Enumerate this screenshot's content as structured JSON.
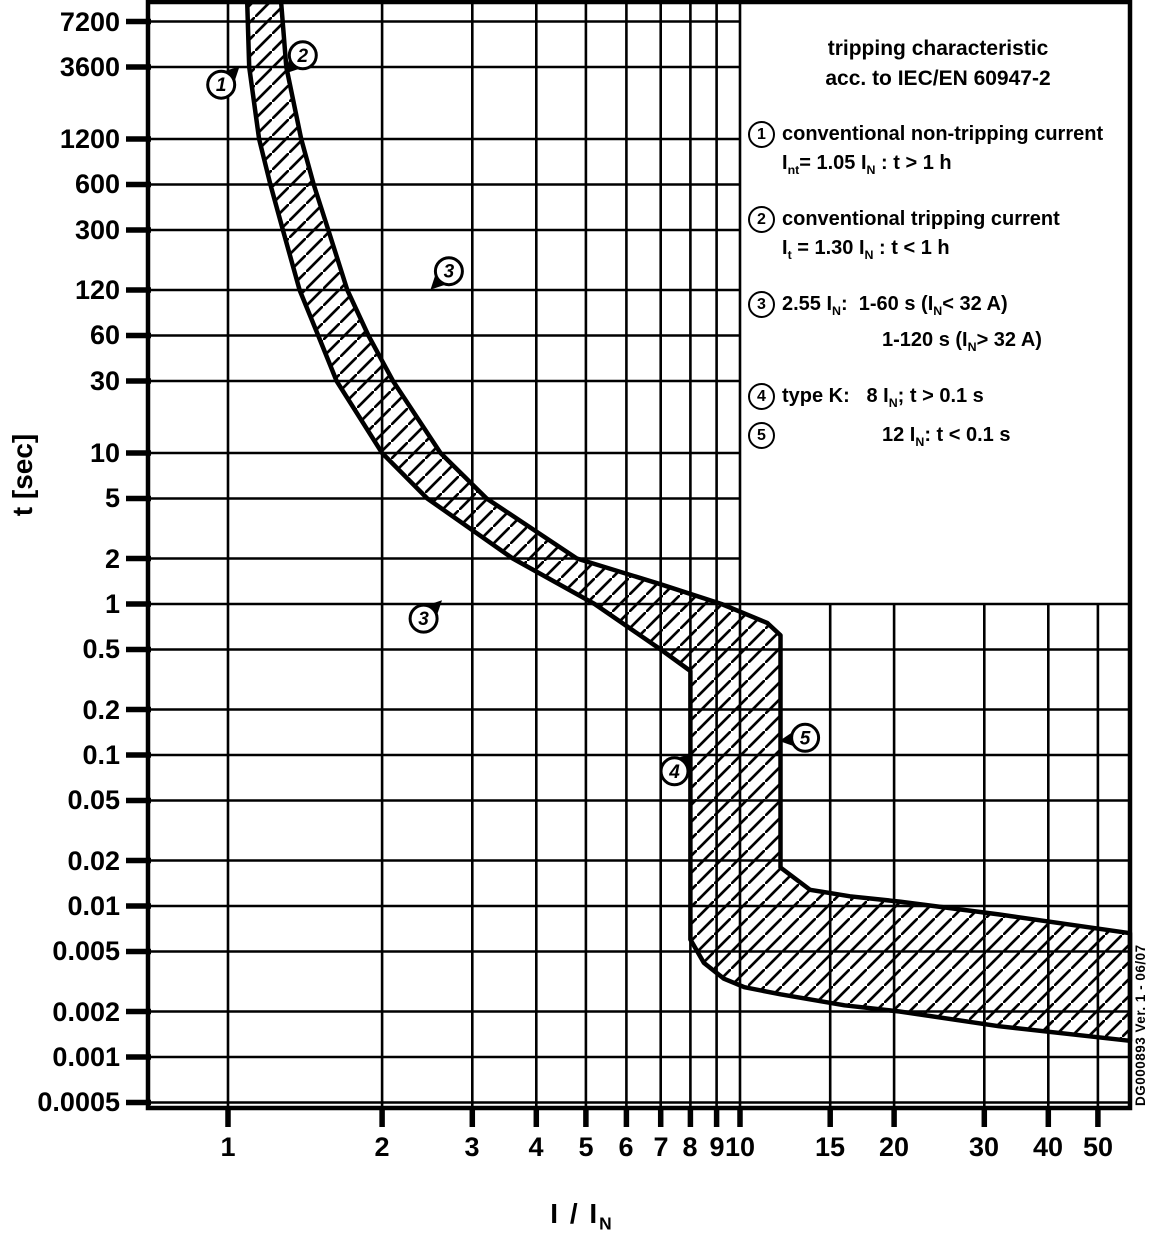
{
  "chart_data": {
    "type": "area",
    "title": "tripping characteristic acc. to IEC/EN 60947-2",
    "xlabel": "I / I~N~",
    "ylabel": "t [sec]",
    "x_scale": "log",
    "y_scale": "log",
    "grid": true,
    "xlim": [
      0.7,
      57.8
    ],
    "ylim": [
      0.00046,
      9700
    ],
    "x_ticks": [
      1,
      2,
      3,
      4,
      5,
      6,
      7,
      8,
      9,
      10,
      15,
      20,
      30,
      40,
      50
    ],
    "x_tick_labels": [
      "1",
      "2",
      "3",
      "4",
      "5",
      "6",
      "7",
      "8",
      "9",
      "10",
      "15",
      "20",
      "30",
      "40",
      "50"
    ],
    "y_ticks": [
      7200,
      3600,
      1200,
      600,
      300,
      120,
      60,
      30,
      10,
      5,
      2,
      1,
      0.5,
      0.2,
      0.1,
      0.05,
      0.02,
      0.01,
      0.005,
      0.002,
      0.001,
      0.0005
    ],
    "y_tick_labels": [
      "7200",
      "3600",
      "1200",
      "600",
      "300",
      "120",
      "60",
      "30",
      "10",
      "5",
      "2",
      "1",
      "0.5",
      "0.2",
      "0.1",
      "0.05",
      "0.02",
      "0.01",
      "0.005",
      "0.002",
      "0.001",
      "0.0005"
    ],
    "band": {
      "name": "tripping-characteristic-band",
      "fill": "diagonal-hatch",
      "left_boundary_I_t": [
        [
          1.09,
          9700
        ],
        [
          1.1,
          3600
        ],
        [
          1.15,
          1200
        ],
        [
          1.21,
          600
        ],
        [
          1.28,
          300
        ],
        [
          1.38,
          120
        ],
        [
          1.5,
          60
        ],
        [
          1.63,
          30
        ],
        [
          2.0,
          10
        ],
        [
          2.45,
          5
        ],
        [
          3.6,
          2
        ],
        [
          5.2,
          1
        ],
        [
          7.0,
          0.5
        ],
        [
          8.0,
          0.36
        ],
        [
          8.0,
          0.006
        ],
        [
          8.5,
          0.0042
        ],
        [
          9.3,
          0.0033
        ],
        [
          10.2,
          0.0029
        ],
        [
          12,
          0.0026
        ],
        [
          16,
          0.0022
        ],
        [
          20.5,
          0.002
        ],
        [
          32,
          0.0016
        ],
        [
          57.6,
          0.00128
        ]
      ],
      "right_boundary_I_t": [
        [
          1.27,
          9700
        ],
        [
          1.3,
          3600
        ],
        [
          1.39,
          1200
        ],
        [
          1.47,
          600
        ],
        [
          1.57,
          300
        ],
        [
          1.71,
          120
        ],
        [
          1.88,
          60
        ],
        [
          2.1,
          30
        ],
        [
          2.6,
          10
        ],
        [
          3.2,
          5
        ],
        [
          4.8,
          2
        ],
        [
          7.0,
          1.35
        ],
        [
          9.2,
          1.0
        ],
        [
          11.3,
          0.75
        ],
        [
          12,
          0.62
        ],
        [
          12,
          0.018
        ],
        [
          13.7,
          0.0128
        ],
        [
          16.4,
          0.0116
        ],
        [
          20.5,
          0.0107
        ],
        [
          32,
          0.0088
        ],
        [
          57.6,
          0.0066
        ]
      ]
    },
    "callouts": [
      {
        "label": "1",
        "I": 0.97,
        "t": 2750,
        "pointer": "ne"
      },
      {
        "label": "2",
        "I": 1.4,
        "t": 4300,
        "pointer": "sw"
      },
      {
        "label": "3",
        "I": 2.7,
        "t": 160,
        "pointer": "sw"
      },
      {
        "label": "3",
        "I": 2.41,
        "t": 0.8,
        "pointer": "ne"
      },
      {
        "label": "4",
        "I": 7.45,
        "t": 0.078,
        "pointer": "ne"
      },
      {
        "label": "5",
        "I": 13.4,
        "t": 0.13,
        "pointer": "w"
      }
    ]
  },
  "legend": {
    "title_lines": [
      "tripping characteristic",
      "acc. to IEC/EN 60947-2"
    ],
    "items": [
      {
        "num": "1",
        "lines": [
          "conventional non-tripping current",
          "I~nt~= 1.05 I~N~ : t > 1 h"
        ]
      },
      {
        "num": "2",
        "lines": [
          "conventional tripping current",
          "I~t~ = 1.30 I~N~ : t < 1 h"
        ]
      },
      {
        "num": "3",
        "lines": [
          "2.55 I~N~:  1-60 s (I~N~< 32 A)",
          "1-120 s (I~N~> 32 A)"
        ]
      },
      {
        "num": "4",
        "lines": [
          "type K:   8 I~N~; t > 0.1 s"
        ]
      },
      {
        "num": "5",
        "lines": [
          "12 I~N~: t < 0.1 s"
        ]
      }
    ]
  },
  "axis": {
    "y_label": "t [sec]",
    "x_label": "I / I~N~"
  },
  "side_code": "DG000893 Ver. 1 - 06/07",
  "colors": {
    "ink": "#000000",
    "background": "#ffffff"
  }
}
